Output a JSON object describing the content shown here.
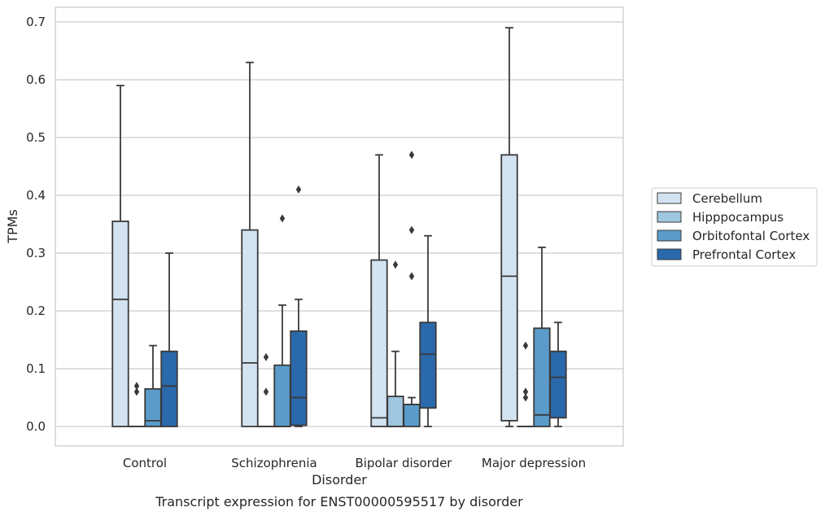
{
  "chart_data": {
    "type": "box",
    "title": "",
    "xlabel": "Disorder",
    "ylabel": "TPMs",
    "caption": "Transcript expression for ENST00000595517 by disorder",
    "ylim": [
      -0.035,
      0.725
    ],
    "yticks": [
      0.0,
      0.1,
      0.2,
      0.3,
      0.4,
      0.5,
      0.6,
      0.7
    ],
    "ytick_labels": [
      "0.0",
      "0.1",
      "0.2",
      "0.3",
      "0.4",
      "0.5",
      "0.6",
      "0.7"
    ],
    "grid": "horizontal",
    "legend_position": "right",
    "categories": [
      "Control",
      "Schizophrenia",
      "Bipolar disorder",
      "Major depression"
    ],
    "series": [
      {
        "name": "Cerebellum",
        "color": "#d4e3f1",
        "boxes": [
          {
            "min": 0.0,
            "q1": 0.0,
            "median": 0.22,
            "q3": 0.355,
            "max": 0.59,
            "outliers": []
          },
          {
            "min": 0.0,
            "q1": 0.0,
            "median": 0.11,
            "q3": 0.34,
            "max": 0.63,
            "outliers": []
          },
          {
            "min": 0.0,
            "q1": 0.0,
            "median": 0.015,
            "q3": 0.288,
            "max": 0.47,
            "outliers": []
          },
          {
            "min": 0.0,
            "q1": 0.01,
            "median": 0.26,
            "q3": 0.47,
            "max": 0.69,
            "outliers": []
          }
        ]
      },
      {
        "name": "Hipppocampus",
        "color": "#9fc6df",
        "boxes": [
          {
            "min": 0.0,
            "q1": 0.0,
            "median": 0.0,
            "q3": 0.0,
            "max": 0.0,
            "outliers": [
              0.06,
              0.07
            ]
          },
          {
            "min": 0.0,
            "q1": 0.0,
            "median": 0.0,
            "q3": 0.0,
            "max": 0.0,
            "outliers": [
              0.06,
              0.12
            ]
          },
          {
            "min": 0.0,
            "q1": 0.0,
            "median": 0.0,
            "q3": 0.052,
            "max": 0.13,
            "outliers": [
              0.28
            ]
          },
          {
            "min": 0.0,
            "q1": 0.0,
            "median": 0.0,
            "q3": 0.0,
            "max": 0.0,
            "outliers": [
              0.05,
              0.06,
              0.14
            ]
          }
        ]
      },
      {
        "name": "Orbitofontal Cortex",
        "color": "#5a9bc9",
        "boxes": [
          {
            "min": 0.0,
            "q1": 0.0,
            "median": 0.01,
            "q3": 0.065,
            "max": 0.14,
            "outliers": []
          },
          {
            "min": 0.0,
            "q1": 0.0,
            "median": 0.0,
            "q3": 0.106,
            "max": 0.21,
            "outliers": [
              0.36
            ]
          },
          {
            "min": 0.0,
            "q1": 0.0,
            "median": 0.038,
            "q3": 0.038,
            "max": 0.05,
            "outliers": [
              0.26,
              0.34,
              0.47
            ]
          },
          {
            "min": 0.0,
            "q1": 0.0,
            "median": 0.02,
            "q3": 0.17,
            "max": 0.31,
            "outliers": []
          }
        ]
      },
      {
        "name": "Prefrontal Cortex",
        "color": "#2a69ab",
        "boxes": [
          {
            "min": 0.0,
            "q1": 0.0,
            "median": 0.07,
            "q3": 0.13,
            "max": 0.3,
            "outliers": []
          },
          {
            "min": 0.0,
            "q1": 0.002,
            "median": 0.05,
            "q3": 0.165,
            "max": 0.22,
            "outliers": [
              0.41
            ]
          },
          {
            "min": 0.0,
            "q1": 0.032,
            "median": 0.125,
            "q3": 0.18,
            "max": 0.33,
            "outliers": []
          },
          {
            "min": 0.0,
            "q1": 0.015,
            "median": 0.085,
            "q3": 0.13,
            "max": 0.18,
            "outliers": []
          }
        ]
      }
    ]
  }
}
